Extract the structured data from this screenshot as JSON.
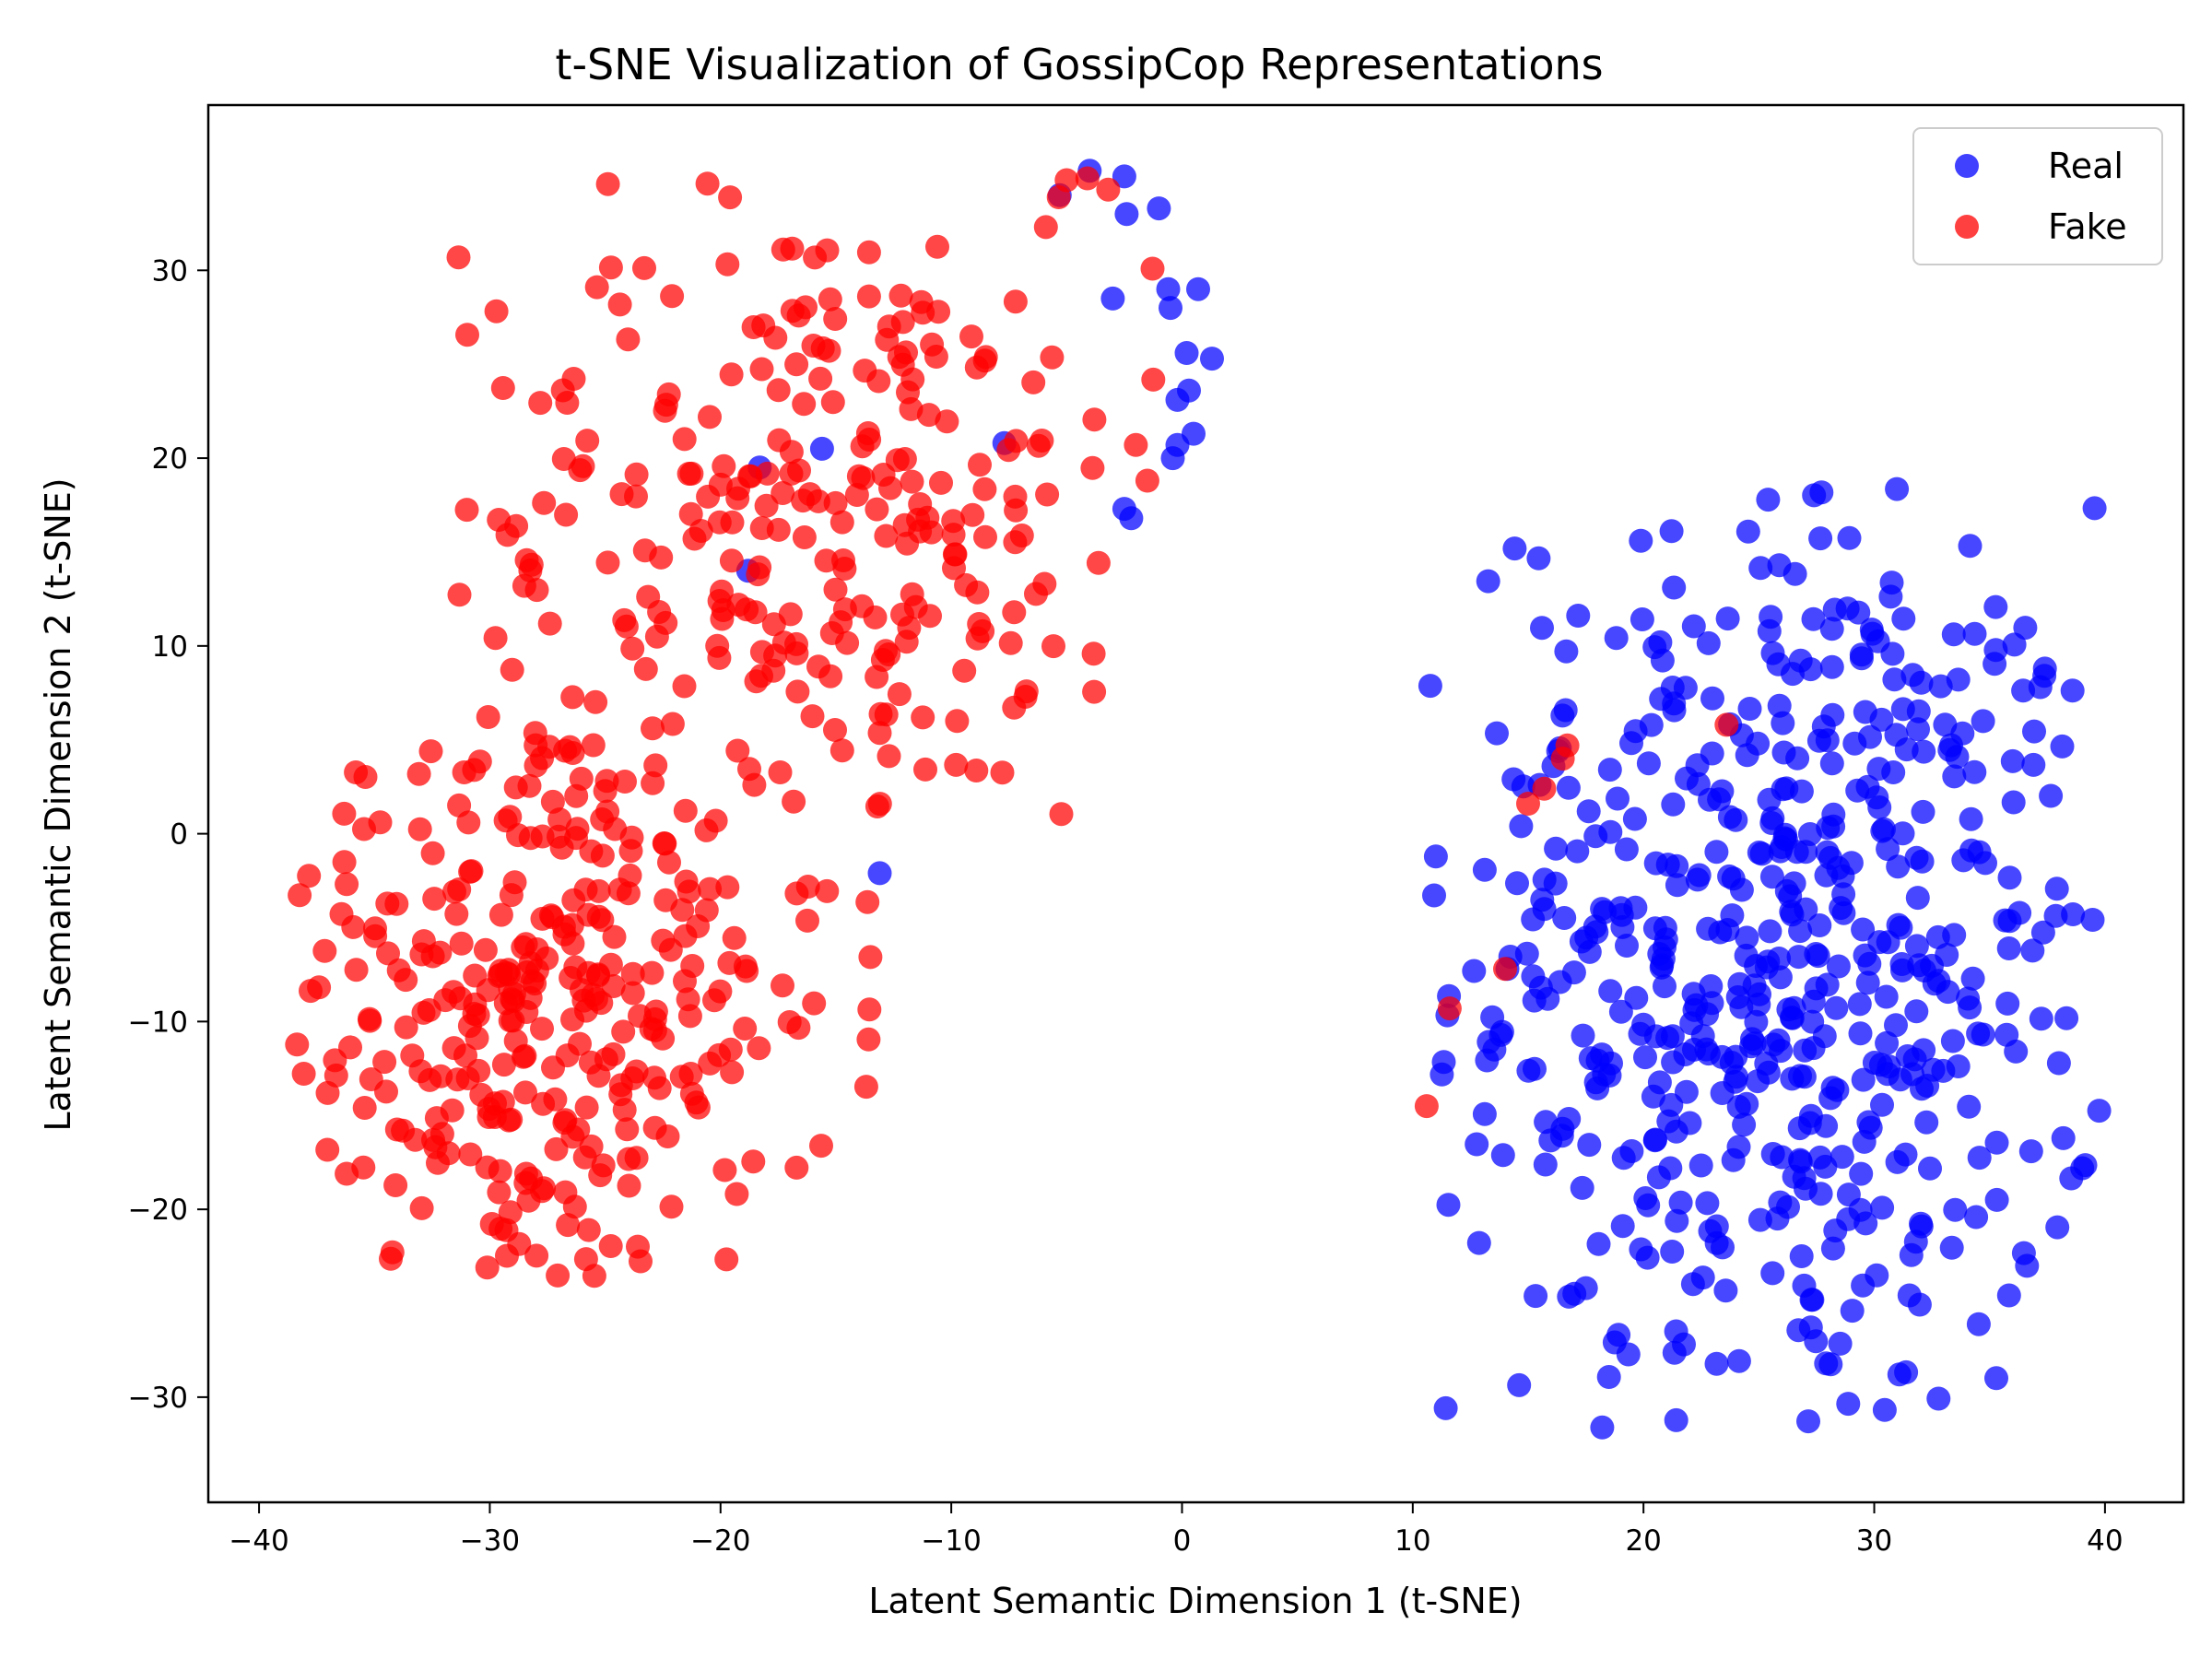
{
  "chart_data": {
    "type": "scatter",
    "title": "t-SNE Visualization of GossipCop Representations",
    "xlabel": "Latent Semantic Dimension 1 (t-SNE)",
    "ylabel": "Latent Semantic Dimension 2 (t-SNE)",
    "xlim": [
      -42.2,
      43.4
    ],
    "ylim": [
      -35.6,
      38.8
    ],
    "xticks": [
      -40,
      -30,
      -20,
      -10,
      0,
      10,
      20,
      30,
      40
    ],
    "yticks": [
      -30,
      -20,
      -10,
      0,
      10,
      20,
      30
    ],
    "xtick_labels": [
      "−40",
      "−30",
      "−20",
      "−10",
      "0",
      "10",
      "20",
      "30",
      "40"
    ],
    "ytick_labels": [
      "−30",
      "−20",
      "−10",
      "0",
      "10",
      "20",
      "30"
    ],
    "grid": false,
    "legend_position": "top-right",
    "series": [
      {
        "name": "Real",
        "color": "#0000ff",
        "clusters": [
          {
            "x_range": [
              10.3,
              40.1
            ],
            "y_range": [
              -32.2,
              18.7
            ],
            "center": [
              26,
              -7
            ],
            "spread": [
              7.0,
              12.5
            ],
            "count": 560
          }
        ],
        "extra_points": [
          [
            -4,
            35.3
          ],
          [
            -2.5,
            35
          ],
          [
            -1,
            33.3
          ],
          [
            -2.4,
            33
          ],
          [
            -5.3,
            34
          ],
          [
            -3,
            28.5
          ],
          [
            -0.6,
            29
          ],
          [
            -0.5,
            28
          ],
          [
            0.7,
            29
          ],
          [
            1.3,
            25.3
          ],
          [
            0.2,
            25.6
          ],
          [
            -0.2,
            23.1
          ],
          [
            0.3,
            23.6
          ],
          [
            0.5,
            21.3
          ],
          [
            -0.4,
            20
          ],
          [
            -0.2,
            20.7
          ],
          [
            -2.5,
            17.3
          ],
          [
            -2.2,
            16.8
          ],
          [
            -18.3,
            19.5
          ],
          [
            -15.6,
            20.5
          ],
          [
            -18.8,
            14
          ],
          [
            -7.7,
            20.8
          ],
          [
            -13.1,
            -2.1
          ],
          [
            14.1,
            -7.2
          ],
          [
            16.3,
            4.4
          ],
          [
            15.5,
            2.6
          ],
          [
            16.1,
            3.6
          ]
        ]
      },
      {
        "name": "Fake",
        "color": "#ff0000",
        "clusters": [
          {
            "x_range": [
              -38.4,
              -13.5
            ],
            "y_range": [
              -23.6,
              5.5
            ],
            "center": [
              -28,
              -9
            ],
            "spread": [
              6.5,
              8.5
            ],
            "count": 330
          },
          {
            "x_range": [
              -32.0,
              -1.0
            ],
            "y_range": [
              0.5,
              35.0
            ],
            "center": [
              -16,
              17
            ],
            "spread": [
              7.5,
              8.5
            ],
            "count": 270
          }
        ],
        "extra_points": [
          [
            11.6,
            -9.3
          ],
          [
            10.6,
            -14.5
          ],
          [
            14.0,
            -7.2
          ],
          [
            15.0,
            1.6
          ],
          [
            15.7,
            2.4
          ],
          [
            16.5,
            4.0
          ],
          [
            16.7,
            4.7
          ],
          [
            23.6,
            5.8
          ],
          [
            -3.2,
            34.3
          ],
          [
            -1.5,
            18.8
          ],
          [
            -2.0,
            20.7
          ],
          [
            -5.0,
            34.8
          ],
          [
            -4.1,
            34.9
          ],
          [
            -5.9,
            32.3
          ]
        ]
      }
    ]
  }
}
